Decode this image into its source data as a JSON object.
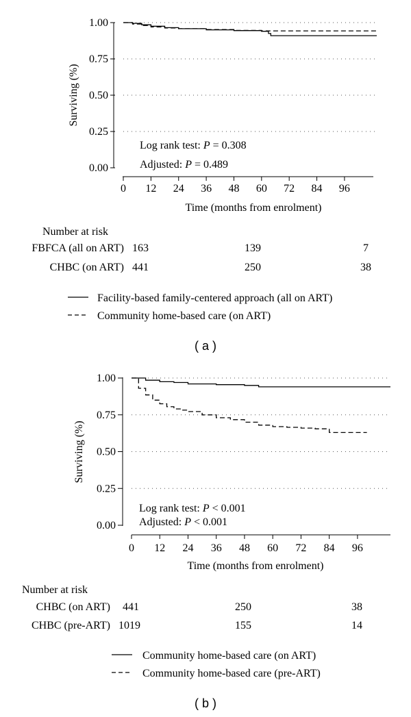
{
  "chart_data": [
    {
      "panel_label": "( a )",
      "type": "line",
      "xlabel": "Time (months from enrolment)",
      "ylabel": "Surviving (%)",
      "xlim": [
        0,
        110
      ],
      "ylim": [
        0,
        1
      ],
      "x_ticks": [
        "0",
        "12",
        "24",
        "36",
        "48",
        "60",
        "72",
        "84",
        "96"
      ],
      "y_ticks": [
        "0.00",
        "0.25",
        "0.50",
        "0.75",
        "1.00"
      ],
      "grid": "horizontal-dotted",
      "annotations": {
        "logrank_prefix": "Log rank test: ",
        "logrank_italic": "P",
        "logrank_suffix": " = 0.308",
        "adjusted_prefix": "Adjusted: ",
        "adjusted_italic": "P",
        "adjusted_suffix": " = 0.489"
      },
      "series": [
        {
          "name": "Facility-based family-centered approach (all on ART)",
          "style": "solid",
          "x": [
            0,
            4,
            8,
            12,
            18,
            24,
            36,
            48,
            60,
            63,
            64,
            110
          ],
          "y": [
            1.0,
            0.995,
            0.985,
            0.975,
            0.965,
            0.958,
            0.95,
            0.945,
            0.94,
            0.925,
            0.91,
            0.91
          ]
        },
        {
          "name": "Community home-based care (on ART)",
          "style": "dashed",
          "x": [
            0,
            4,
            8,
            12,
            18,
            24,
            36,
            48,
            60,
            63,
            110
          ],
          "y": [
            1.0,
            0.99,
            0.98,
            0.97,
            0.963,
            0.958,
            0.952,
            0.946,
            0.943,
            0.943,
            0.943
          ]
        }
      ],
      "risk_table": {
        "title": "Number at risk",
        "rows": [
          {
            "label": "FBFCA (all on ART)",
            "values": [
              "163",
              "139",
              "7"
            ]
          },
          {
            "label": "CHBC (on ART)",
            "values": [
              "441",
              "250",
              "38"
            ]
          }
        ]
      }
    },
    {
      "panel_label": "( b )",
      "type": "line",
      "xlabel": "Time (months from enrolment)",
      "ylabel": "Surviving (%)",
      "xlim": [
        0,
        110
      ],
      "ylim": [
        0,
        1
      ],
      "x_ticks": [
        "0",
        "12",
        "24",
        "36",
        "48",
        "60",
        "72",
        "84",
        "96"
      ],
      "y_ticks": [
        "0.00",
        "0.25",
        "0.50",
        "0.75",
        "1.00"
      ],
      "grid": "horizontal-dotted",
      "annotations": {
        "logrank_prefix": "Log rank test: ",
        "logrank_italic": "P",
        "logrank_suffix": " < 0.001",
        "adjusted_prefix": "Adjusted: ",
        "adjusted_italic": "P",
        "adjusted_suffix": " < 0.001"
      },
      "series": [
        {
          "name": "Community home-based care (on ART)",
          "style": "solid",
          "x": [
            0,
            6,
            12,
            18,
            24,
            36,
            48,
            54,
            110
          ],
          "y": [
            1.0,
            0.985,
            0.975,
            0.97,
            0.96,
            0.955,
            0.95,
            0.94,
            0.94
          ]
        },
        {
          "name": "Community home-based care (pre-ART)",
          "style": "dashed",
          "x": [
            0,
            3,
            6,
            9,
            12,
            15,
            18,
            21,
            24,
            30,
            36,
            42,
            48,
            54,
            60,
            66,
            72,
            78,
            82,
            84,
            100
          ],
          "y": [
            1.0,
            0.93,
            0.885,
            0.85,
            0.825,
            0.805,
            0.79,
            0.782,
            0.772,
            0.75,
            0.73,
            0.717,
            0.7,
            0.68,
            0.67,
            0.665,
            0.66,
            0.655,
            0.655,
            0.63,
            0.63
          ]
        }
      ],
      "risk_table": {
        "title": "Number at risk",
        "rows": [
          {
            "label": "CHBC (on ART)",
            "values": [
              "441",
              "250",
              "38"
            ]
          },
          {
            "label": "CHBC (pre-ART)",
            "values": [
              "1019",
              "155",
              "14"
            ]
          }
        ]
      }
    }
  ]
}
